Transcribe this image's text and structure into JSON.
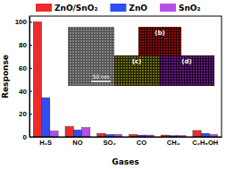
{
  "chart_data": {
    "type": "bar",
    "x_label": "Gases",
    "y_label": "Response",
    "categories": [
      "H₂S",
      "NO",
      "SO₂",
      "CO",
      "CH₄",
      "C₂H₅OH"
    ],
    "series": [
      {
        "name": "ZnO/SnO₂",
        "color": "#ee2b2b",
        "values": [
          100,
          9,
          3,
          2,
          1.5,
          5.5
        ]
      },
      {
        "name": "ZnO",
        "color": "#2f4ff0",
        "values": [
          34,
          6,
          2,
          1.5,
          1,
          3
        ]
      },
      {
        "name": "SnO₂",
        "color": "#b64ee6",
        "values": [
          5,
          8,
          2,
          1.5,
          1,
          2
        ]
      }
    ],
    "ylim": [
      0,
      105
    ],
    "yticks": [
      0,
      20,
      40,
      60,
      80,
      100
    ],
    "legend": "top",
    "annotations": [
      "50 nm",
      "(b)",
      "(c)",
      "(d)"
    ]
  }
}
